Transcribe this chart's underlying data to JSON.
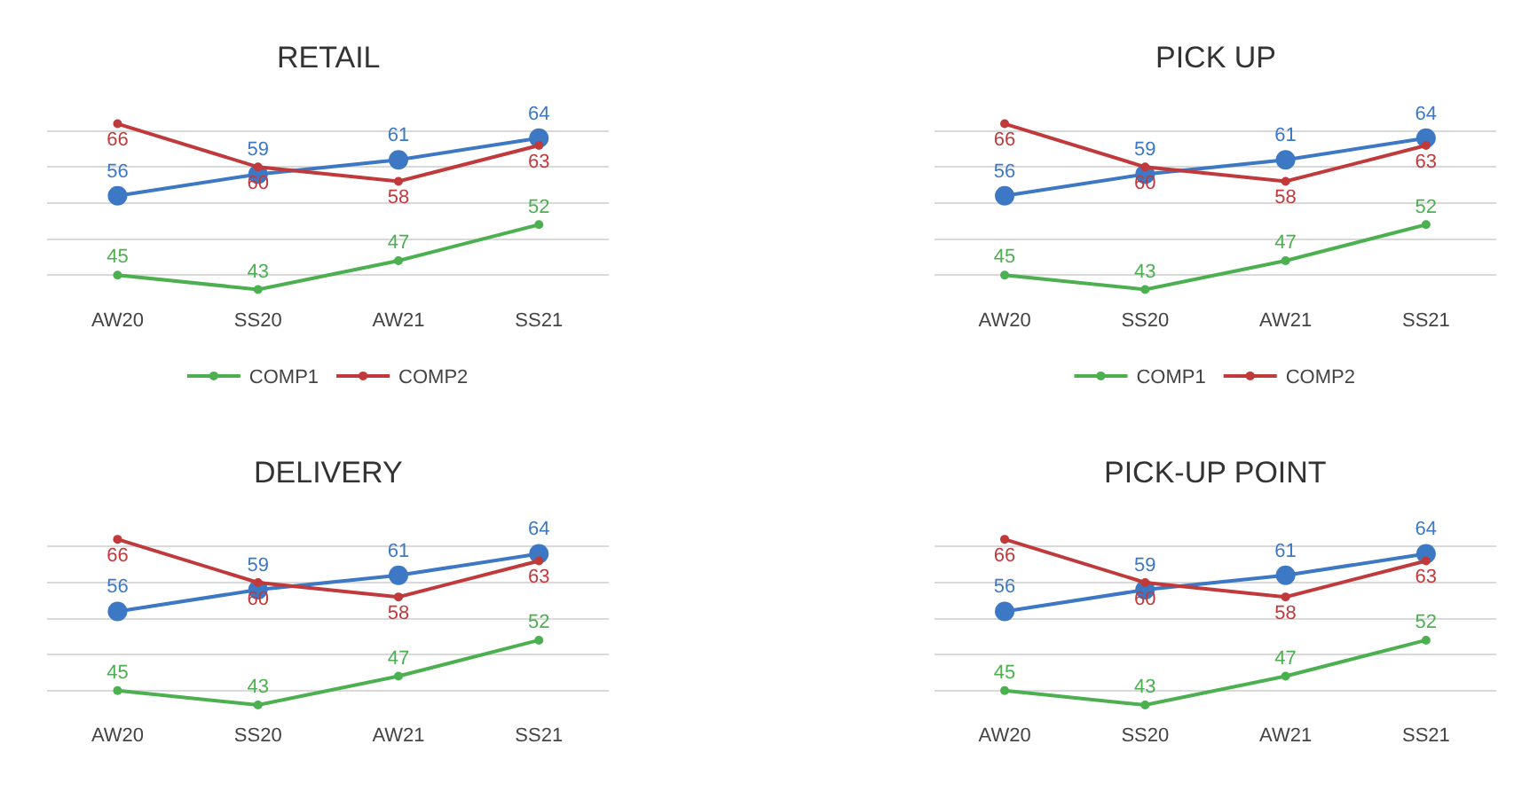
{
  "chart_data": [
    {
      "type": "line",
      "title": "RETAIL",
      "categories": [
        "AW20",
        "SS20",
        "AW21",
        "SS21"
      ],
      "tick_labels": "x",
      "grid": "y",
      "legend": "bottom",
      "marker": "circle",
      "data_labels": true,
      "series": [
        {
          "color": "#3d78c4",
          "values": [
            56,
            59,
            61,
            64
          ]
        },
        {
          "name": "COMP1",
          "color": "#4caf50",
          "values": [
            45,
            43,
            47,
            52
          ]
        },
        {
          "name": "COMP2",
          "color": "#c0393b",
          "values": [
            66,
            60,
            58,
            63
          ]
        }
      ]
    },
    {
      "type": "line",
      "title": "PICK UP",
      "categories": [
        "AW20",
        "SS20",
        "AW21",
        "SS21"
      ],
      "tick_labels": "x",
      "grid": "y",
      "legend": "bottom",
      "marker": "circle",
      "data_labels": true,
      "series": [
        {
          "color": "#3d78c4",
          "values": [
            56,
            59,
            61,
            64
          ]
        },
        {
          "name": "COMP1",
          "color": "#4caf50",
          "values": [
            45,
            43,
            47,
            52
          ]
        },
        {
          "name": "COMP2",
          "color": "#c0393b",
          "values": [
            66,
            60,
            58,
            63
          ]
        }
      ]
    },
    {
      "type": "line",
      "title": "DELIVERY",
      "categories": [
        "AW20",
        "SS20",
        "AW21",
        "SS21"
      ],
      "tick_labels": "x",
      "grid": "y",
      "marker": "circle",
      "data_labels": true,
      "series": [
        {
          "color": "#3d78c4",
          "values": [
            56,
            59,
            61,
            64
          ]
        },
        {
          "color": "#4caf50",
          "values": [
            45,
            43,
            47,
            52
          ]
        },
        {
          "color": "#c0393b",
          "values": [
            66,
            60,
            58,
            63
          ]
        }
      ]
    },
    {
      "type": "line",
      "title": "PICK-UP POINT",
      "categories": [
        "AW20",
        "SS20",
        "AW21",
        "SS21"
      ],
      "tick_labels": "x",
      "grid": "y",
      "marker": "circle",
      "data_labels": true,
      "series": [
        {
          "color": "#3d78c4",
          "values": [
            56,
            59,
            61,
            64
          ]
        },
        {
          "color": "#4caf50",
          "values": [
            45,
            43,
            47,
            52
          ]
        },
        {
          "color": "#c0393b",
          "values": [
            66,
            60,
            58,
            63
          ]
        }
      ]
    }
  ]
}
